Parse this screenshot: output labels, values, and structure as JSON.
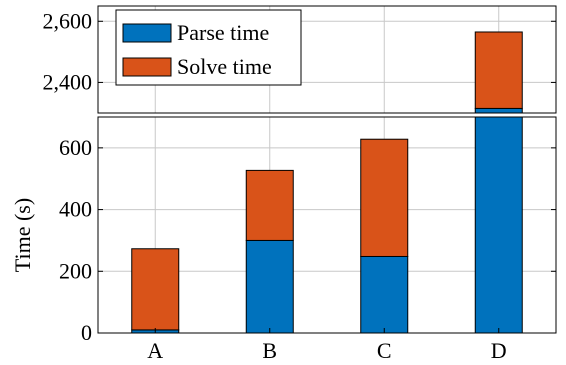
{
  "colors": {
    "parse": "#0072bd",
    "solve": "#d95319",
    "grid": "#c8c8c8",
    "axis": "#000000"
  },
  "chart_data": {
    "type": "bar",
    "stacked": true,
    "broken_y_axis": true,
    "categories": [
      "A",
      "B",
      "C",
      "D"
    ],
    "series": [
      {
        "name": "Parse time",
        "values": [
          10,
          300,
          248,
          2315
        ]
      },
      {
        "name": "Solve time",
        "values": [
          263,
          227,
          380,
          250
        ]
      }
    ],
    "ylabel": "Time (s)",
    "xlabel": "",
    "title": "",
    "lower_ylim": [
      0,
      700
    ],
    "upper_ylim": [
      2300,
      2650
    ],
    "lower_yticks": [
      0,
      200,
      400,
      600
    ],
    "upper_yticks": [
      2400,
      2600
    ],
    "lower_ytick_labels": [
      "0",
      "200",
      "400",
      "600"
    ],
    "upper_ytick_labels": [
      "2,400",
      "2,600"
    ],
    "grid": true,
    "legend_position": "top-left"
  }
}
